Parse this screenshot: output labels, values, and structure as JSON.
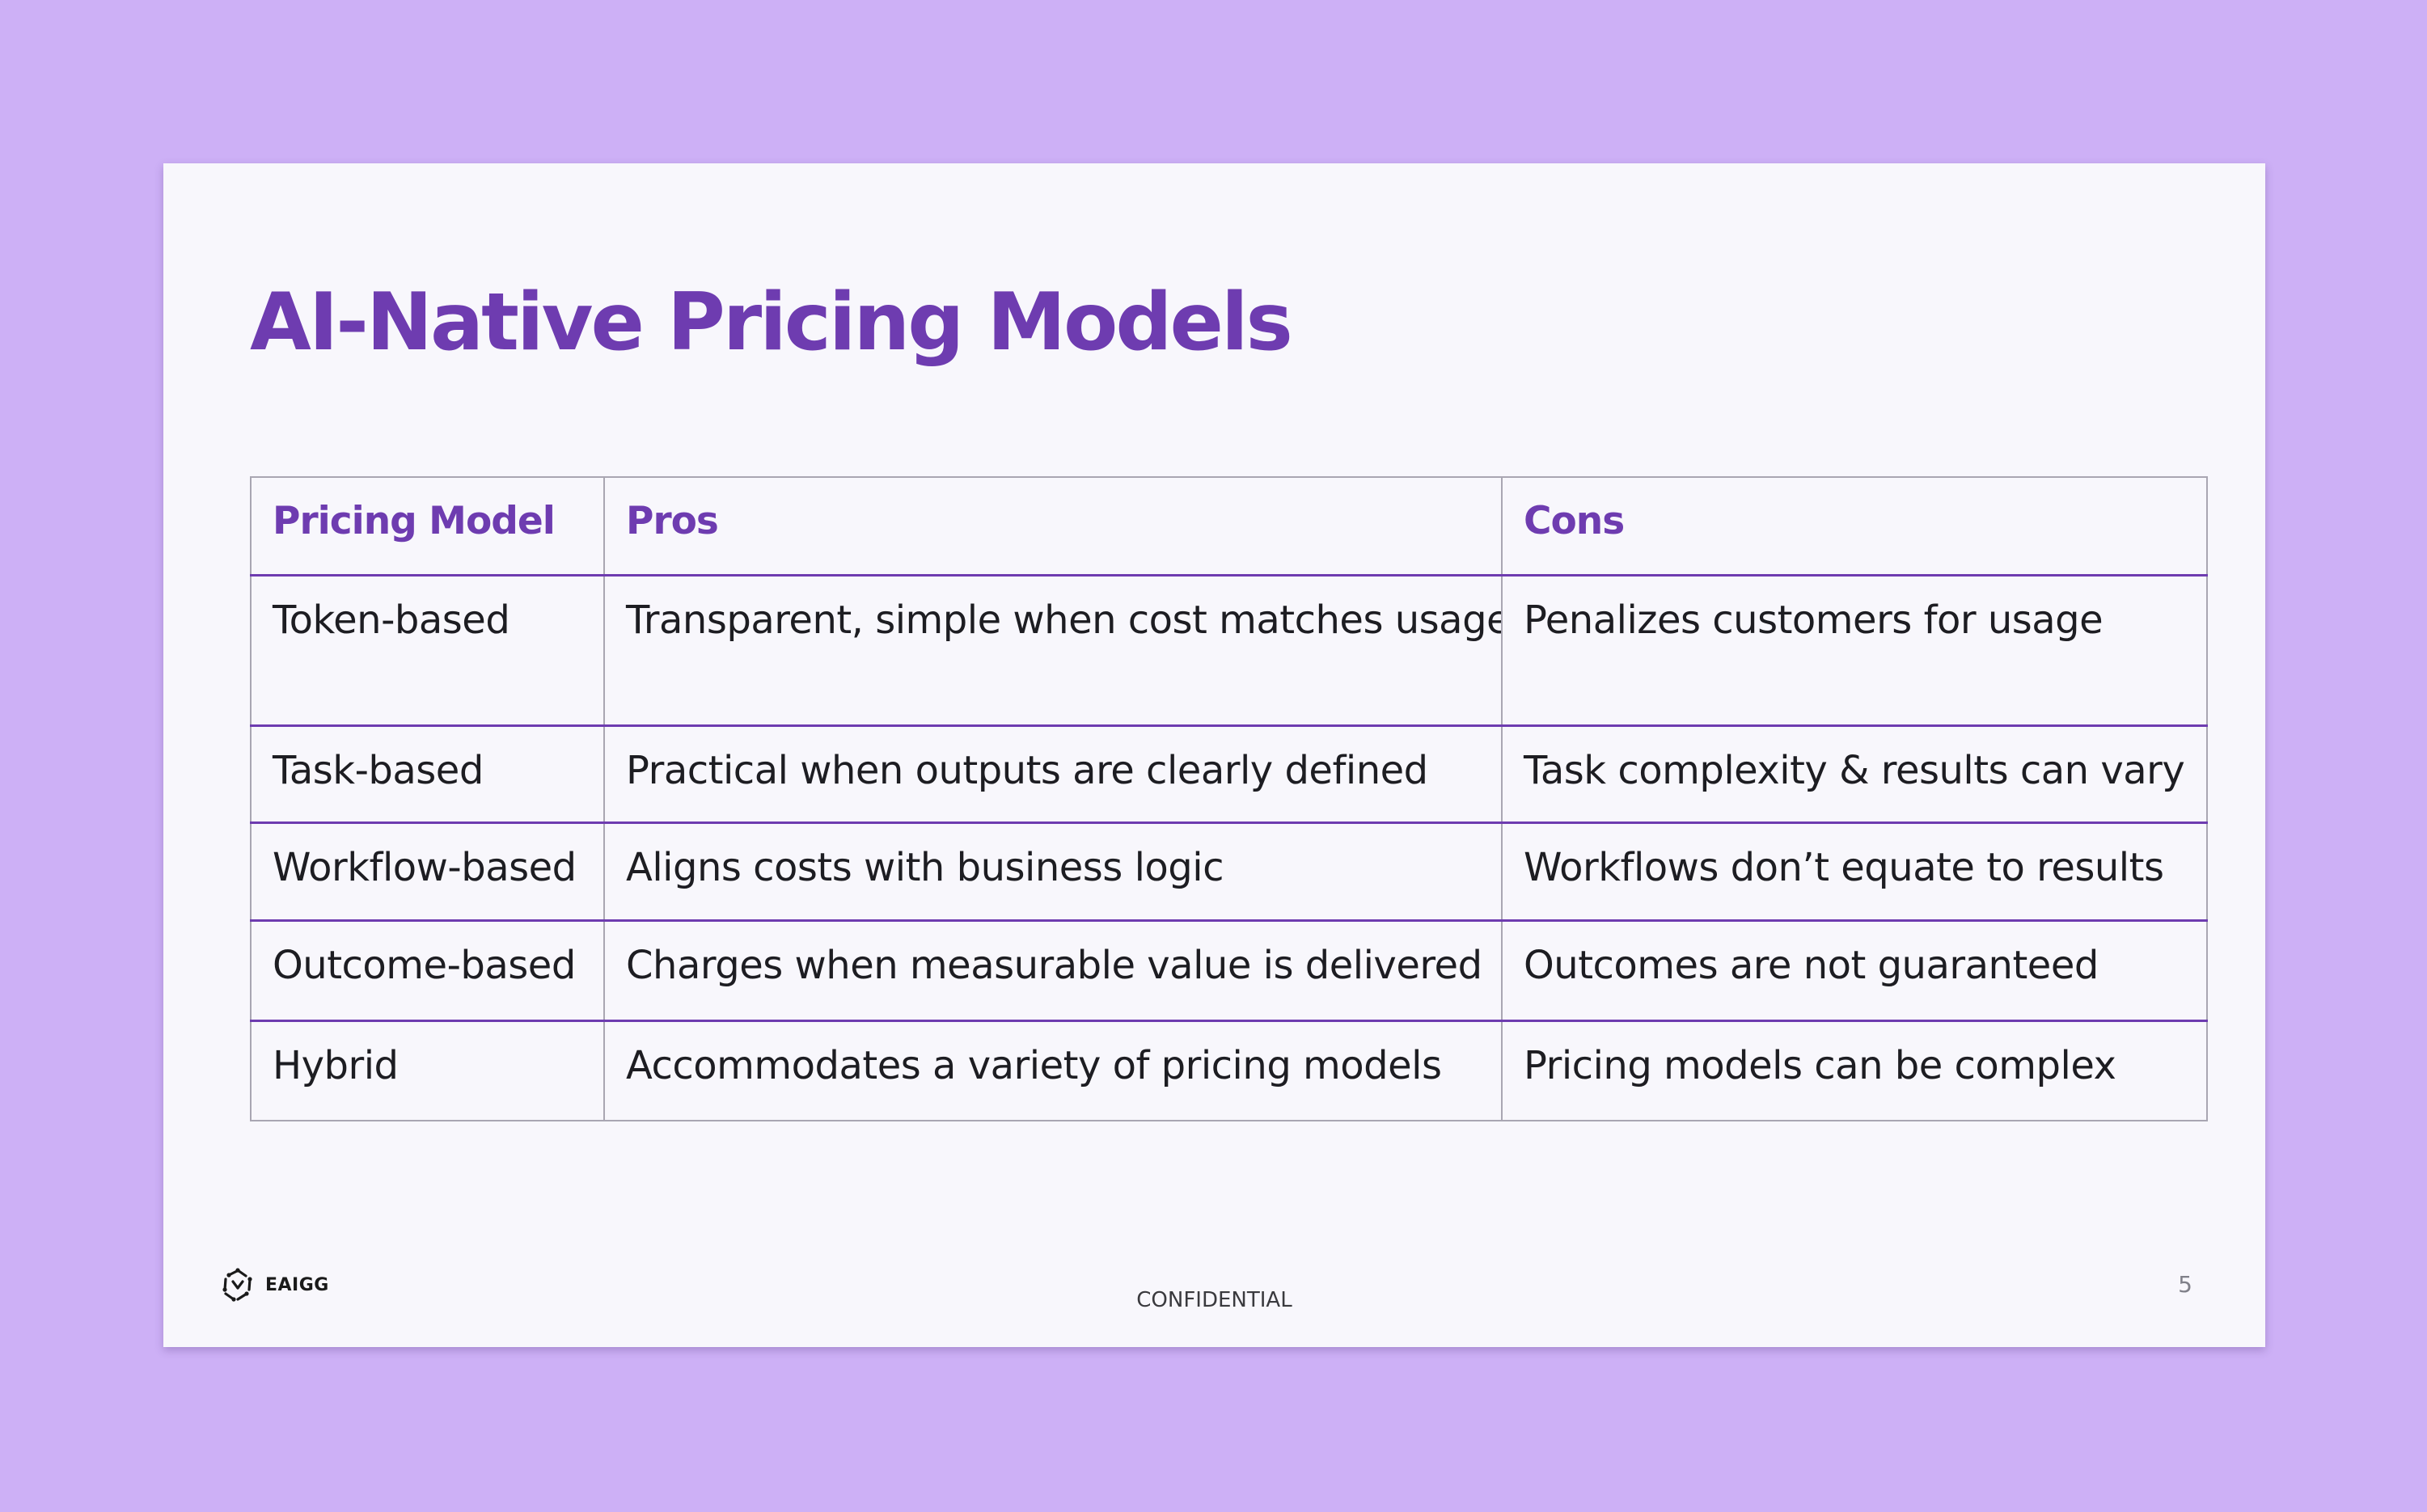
{
  "slide": {
    "title": "AI-Native Pricing Models",
    "table": {
      "headers": [
        "Pricing Model",
        "Pros",
        "Cons"
      ],
      "rows": [
        [
          "Token-based",
          "Transparent, simple when cost matches usage",
          "Penalizes customers for usage"
        ],
        [
          "Task-based",
          "Practical when outputs are clearly defined",
          "Task complexity & results can vary"
        ],
        [
          "Workflow-based",
          "Aligns costs with business logic",
          "Workflows don’t equate to results"
        ],
        [
          "Outcome-based",
          "Charges when measurable value is delivered",
          "Outcomes are not guaranteed"
        ],
        [
          "Hybrid",
          "Accommodates a variety of pricing models",
          "Pricing models can be complex"
        ]
      ]
    },
    "footer": {
      "logo_text": "EAIGG",
      "logo_icon": "eaigg-logo-icon",
      "confidential": "CONFIDENTIAL",
      "page_number": "5"
    }
  },
  "colors": {
    "background": "#cdb0f6",
    "slide": "#f8f7fc",
    "accent": "#6e3cb0",
    "text": "#1d1d22",
    "grid": "#a9a6b2"
  }
}
